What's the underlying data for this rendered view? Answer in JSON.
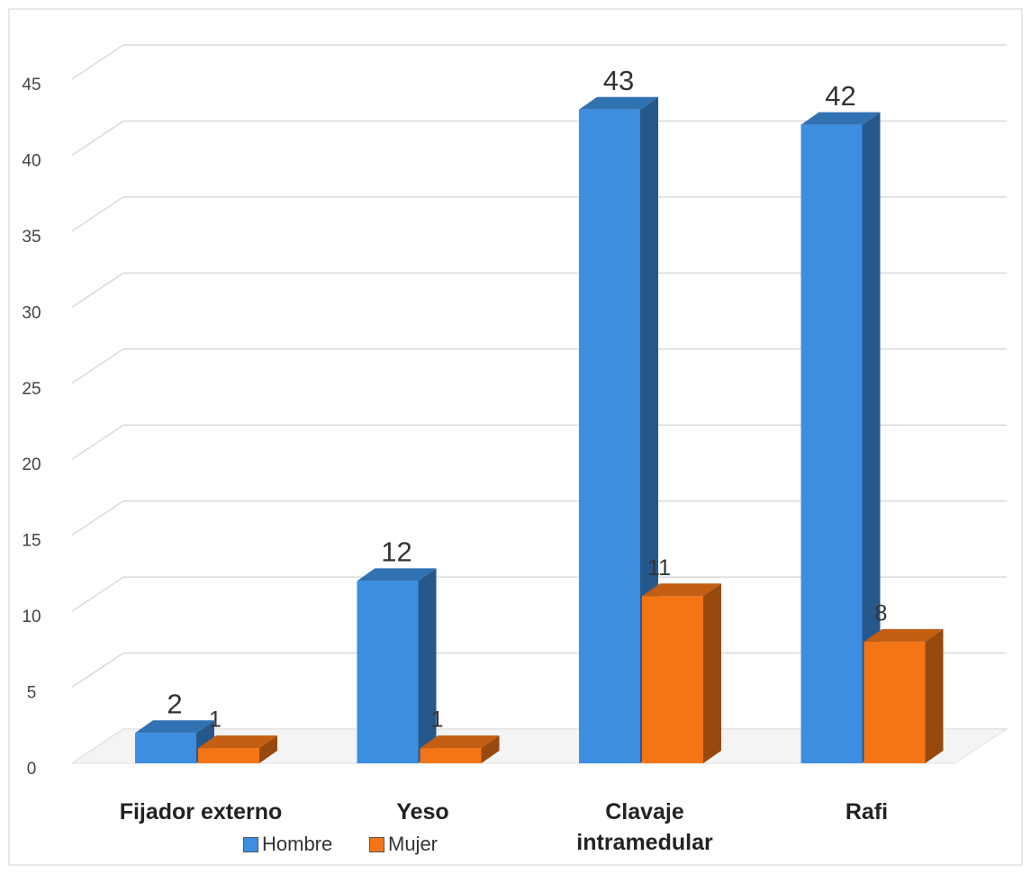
{
  "chart_data": {
    "type": "bar3d",
    "categories": [
      "Fijador externo",
      "Yeso",
      "Clavaje intramedular",
      "Rafi"
    ],
    "series": [
      {
        "name": "Hombre",
        "color": "#3d8ee0",
        "values": [
          2,
          12,
          43,
          42
        ]
      },
      {
        "name": "Mujer",
        "color": "#f47516",
        "values": [
          1,
          1,
          11,
          8
        ]
      }
    ],
    "ylim": [
      0,
      45
    ],
    "yticks": [
      0,
      5,
      10,
      15,
      20,
      25,
      30,
      35,
      40,
      45
    ],
    "grid": true,
    "legend": "bottom"
  }
}
